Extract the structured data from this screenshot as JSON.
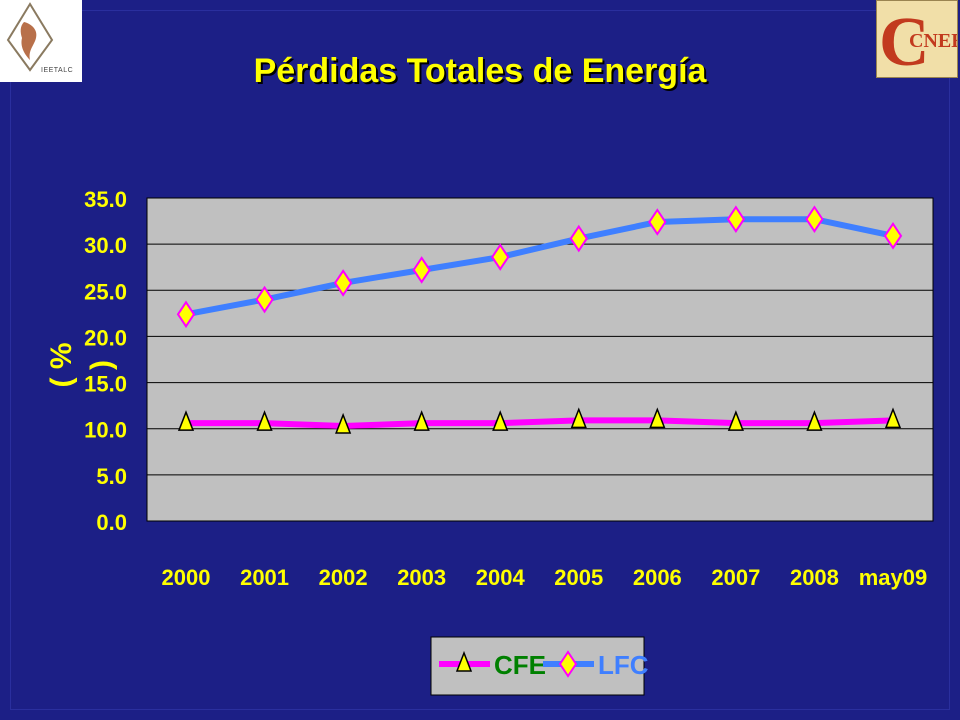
{
  "header": {
    "title": "Pérdidas Totales de Energía",
    "logo_left_text": "IEETALC",
    "logo_right_text": "CNEE"
  },
  "colors": {
    "background": "#1c1f86",
    "title": "#ffff00",
    "plot_area": "#c0c0c0",
    "cfe_line": "#ff00ff",
    "lfc_line": "#3f7fff",
    "marker_fill": "#ffff00"
  },
  "chart_data": {
    "type": "line",
    "title": "Pérdidas Totales de Energía",
    "xlabel": "",
    "ylabel": "( % )",
    "categories": [
      "2000",
      "2001",
      "2002",
      "2003",
      "2004",
      "2005",
      "2006",
      "2007",
      "2008",
      "may09"
    ],
    "ylim": [
      0,
      35
    ],
    "yticks": [
      "0.0",
      "5.0",
      "10.0",
      "15.0",
      "20.0",
      "25.0",
      "30.0",
      "35.0"
    ],
    "grid": true,
    "legend_position": "bottom",
    "series": [
      {
        "name": "CFE",
        "marker": "triangle",
        "values": [
          10.6,
          10.6,
          10.3,
          10.6,
          10.6,
          10.9,
          10.9,
          10.6,
          10.6,
          10.9
        ]
      },
      {
        "name": "LFC",
        "marker": "diamond",
        "values": [
          22.4,
          24.0,
          25.8,
          27.2,
          28.6,
          30.6,
          32.4,
          32.7,
          32.7,
          30.9
        ]
      }
    ]
  }
}
